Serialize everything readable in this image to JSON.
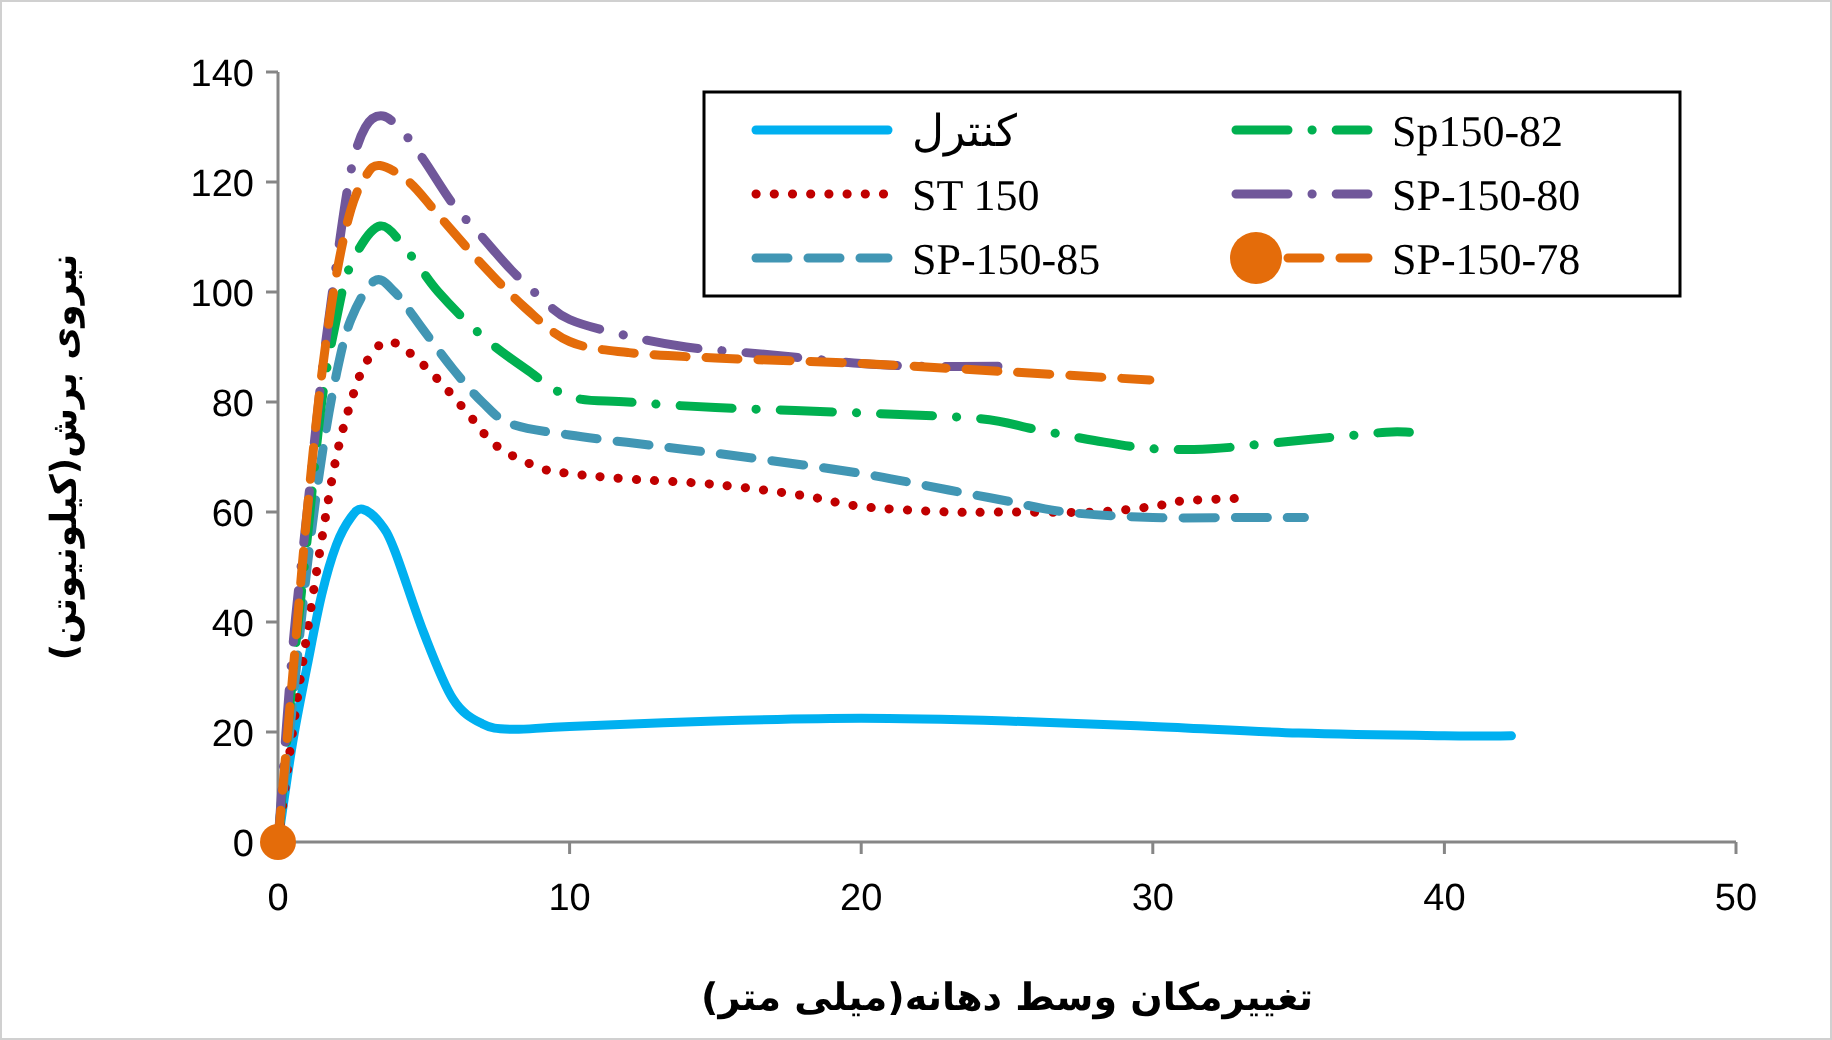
{
  "chart_data": {
    "type": "line",
    "xlabel": "تغییرمکان وسط دهانه(میلی متر)",
    "ylabel": "نیروی برش(کیلونیوتن)",
    "xlim": [
      0,
      50
    ],
    "xticks": [
      0,
      10,
      20,
      30,
      40,
      50
    ],
    "ylim": [
      0,
      140
    ],
    "yticks": [
      0,
      20,
      40,
      60,
      80,
      100,
      120,
      140
    ],
    "grid": false,
    "legend": "top right",
    "series": [
      {
        "name": "کنترل",
        "color": "#00b0f0",
        "line_style": "solid",
        "x": [
          0,
          0.5,
          1,
          1.5,
          2,
          2.5,
          2.9,
          3.5,
          4,
          5,
          6,
          7,
          8,
          10,
          15,
          20,
          25,
          30,
          35,
          40,
          42.3
        ],
        "values": [
          0,
          18,
          32,
          45,
          54,
          59,
          60.5,
          58,
          53,
          38,
          26,
          21.5,
          20.5,
          21,
          22,
          22.5,
          22,
          21,
          19.8,
          19.3,
          19.3
        ]
      },
      {
        "name": "ST 150",
        "color": "#c00000",
        "line_style": "dotted",
        "x": [
          0,
          0.5,
          1,
          1.5,
          2,
          2.5,
          3,
          3.7,
          4.5,
          5.5,
          6.5,
          7.5,
          9,
          10,
          12,
          15,
          18,
          20,
          23,
          25,
          28,
          30,
          31,
          33
        ],
        "values": [
          0,
          20,
          38,
          55,
          70,
          80,
          87,
          91,
          89,
          84,
          78,
          72,
          68,
          67,
          66,
          65,
          63,
          61,
          60,
          60,
          60,
          61,
          62,
          62.5
        ]
      },
      {
        "name": "SP-150-85",
        "color": "#4196b4",
        "line_style": "dashed",
        "x": [
          0,
          0.5,
          1,
          1.5,
          2,
          2.5,
          3.3,
          4,
          5,
          6,
          7,
          8,
          10,
          13,
          16,
          20,
          23,
          25,
          27,
          30,
          33,
          35.2
        ],
        "values": [
          0,
          25,
          50,
          70,
          85,
          95,
          102,
          100,
          93,
          86,
          80,
          76,
          74,
          72,
          70,
          67,
          64,
          62,
          60,
          59,
          59,
          59
        ]
      },
      {
        "name": "Sp150-82",
        "color": "#00b050",
        "line_style": "dashdot",
        "x": [
          0,
          0.5,
          1,
          1.5,
          2,
          2.5,
          3.5,
          4.5,
          5.5,
          7,
          8.5,
          10,
          12,
          15,
          20,
          24,
          26,
          28,
          30,
          32,
          34,
          36,
          38,
          38.8
        ],
        "values": [
          0,
          30,
          55,
          80,
          95,
          105,
          112,
          107,
          100,
          92,
          86,
          81,
          80,
          79,
          78,
          77,
          75,
          73,
          71.5,
          71.5,
          72.5,
          73.5,
          74.5,
          74.5
        ]
      },
      {
        "name": "SP-150-80",
        "color": "#70579a",
        "line_style": "dashdot",
        "x": [
          0,
          0.5,
          1,
          1.5,
          2,
          2.5,
          3,
          3.6,
          4.3,
          5,
          6,
          7,
          8,
          9,
          10,
          12,
          14,
          16,
          18,
          20,
          22,
          25
        ],
        "values": [
          0,
          35,
          60,
          85,
          105,
          122,
          130,
          132,
          129,
          124,
          116,
          110,
          104,
          99,
          95,
          92,
          90,
          89,
          88,
          87,
          86.5,
          86.5
        ]
      },
      {
        "name": "SP-150-78",
        "color": "#e46c0a",
        "line_style": "dashed",
        "x": [
          0,
          0.5,
          1,
          1.5,
          2,
          2.5,
          3,
          3.5,
          4.5,
          5.5,
          7,
          8.5,
          10,
          12,
          15,
          20,
          25,
          29.9
        ],
        "values": [
          0,
          30,
          60,
          85,
          103,
          115,
          121,
          123,
          120,
          114,
          105,
          97,
          91,
          89,
          88,
          87,
          85.5,
          84
        ]
      },
      {
        "type": "scatter",
        "color": "#e46c0a",
        "marker": "circle",
        "x": [
          0
        ],
        "values": [
          0
        ]
      }
    ]
  }
}
